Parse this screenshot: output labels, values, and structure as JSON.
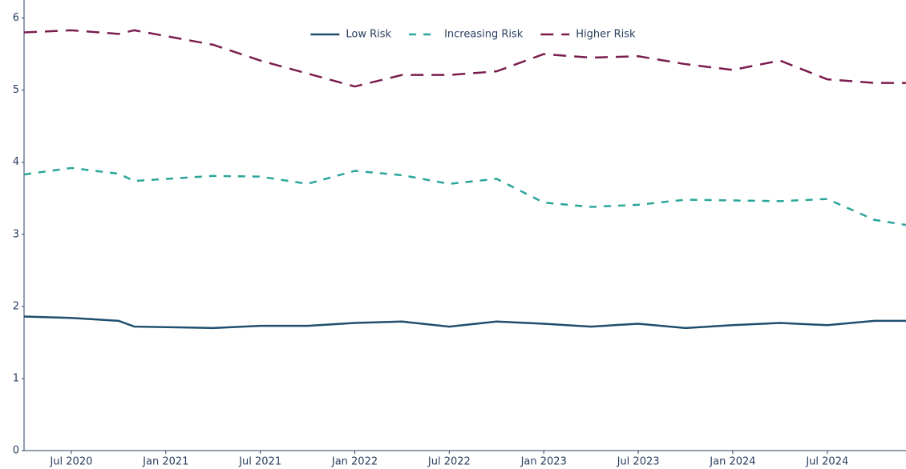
{
  "chart_data": {
    "type": "line",
    "x": [
      "2020-04",
      "2020-07",
      "2020-10",
      "2020-11",
      "2021-04",
      "2021-07",
      "2021-10",
      "2022-01",
      "2022-04",
      "2022-07",
      "2022-10",
      "2023-01",
      "2023-04",
      "2023-07",
      "2023-10",
      "2024-01",
      "2024-04",
      "2024-07",
      "2024-10",
      "2024-12"
    ],
    "series": [
      {
        "name": "Low Risk",
        "color": "#1f4e6e",
        "dash": "solid",
        "values": [
          1.86,
          1.84,
          1.8,
          1.72,
          1.7,
          1.73,
          1.73,
          1.77,
          1.79,
          1.72,
          1.79,
          1.76,
          1.72,
          1.76,
          1.7,
          1.74,
          1.77,
          1.74,
          1.8,
          1.8
        ]
      },
      {
        "name": "Increasing Risk",
        "color": "#2ba69a",
        "dash": "dash",
        "values": [
          3.83,
          3.92,
          3.84,
          3.74,
          3.81,
          3.8,
          3.7,
          3.88,
          3.82,
          3.7,
          3.77,
          3.44,
          3.38,
          3.41,
          3.48,
          3.47,
          3.46,
          3.49,
          3.2,
          3.13
        ]
      },
      {
        "name": "Higher Risk",
        "color": "#7b1c4f",
        "dash": "longdash",
        "values": [
          5.8,
          5.83,
          5.78,
          5.83,
          5.63,
          5.41,
          5.23,
          5.05,
          5.21,
          5.21,
          5.26,
          5.5,
          5.45,
          5.47,
          5.36,
          5.28,
          5.41,
          5.15,
          5.1,
          5.1
        ]
      }
    ],
    "xlim": [
      "2020-04",
      "2024-12"
    ],
    "xticks": [
      {
        "value": "2020-07",
        "label": "Jul 2020"
      },
      {
        "value": "2021-01",
        "label": "Jan 2021"
      },
      {
        "value": "2021-07",
        "label": "Jul 2021"
      },
      {
        "value": "2022-01",
        "label": "Jan 2022"
      },
      {
        "value": "2022-07",
        "label": "Jul 2022"
      },
      {
        "value": "2023-01",
        "label": "Jan 2023"
      },
      {
        "value": "2023-07",
        "label": "Jul 2023"
      },
      {
        "value": "2024-01",
        "label": "Jan 2024"
      },
      {
        "value": "2024-07",
        "label": "Jul 2024"
      }
    ],
    "ylim": [
      0,
      6.25
    ],
    "yticks": [
      0,
      1,
      2,
      3,
      4,
      5,
      6
    ],
    "grid": false,
    "legend": "top"
  }
}
